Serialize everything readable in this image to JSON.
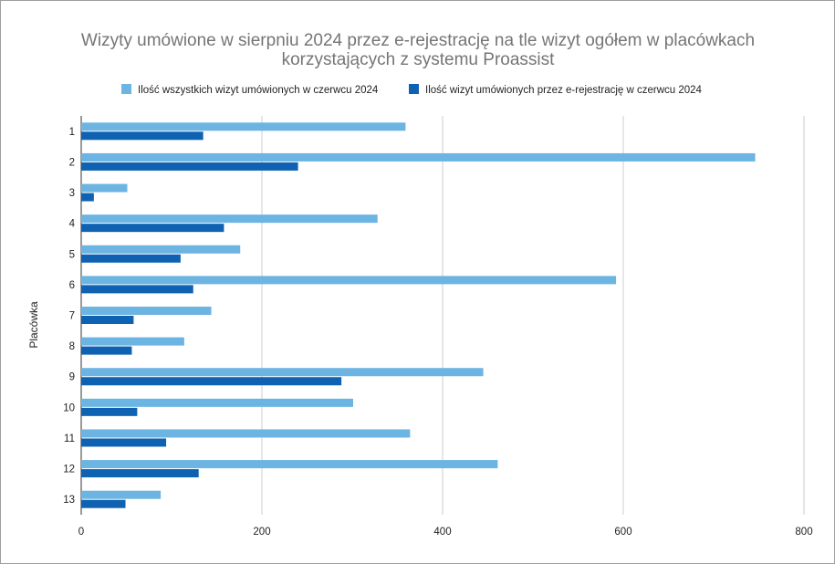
{
  "chart_data": {
    "type": "bar",
    "orientation": "horizontal",
    "title_lines": [
      "Wizyty umówione w sierpniu 2024  przez e-rejestrację na tle wizyt ogółem w placówkach",
      "korzystających z systemu Proassist"
    ],
    "ylabel": "Placówka",
    "xlabel": "",
    "categories": [
      "1",
      "2",
      "3",
      "4",
      "5",
      "6",
      "7",
      "8",
      "9",
      "10",
      "11",
      "12",
      "13"
    ],
    "xlim": [
      0,
      800
    ],
    "xticks": [
      "0",
      "200",
      "400",
      "600",
      "800"
    ],
    "grid": true,
    "legend_position": "top",
    "series": [
      {
        "name": "Ilość wszystkich wizyt umówionych w czerwcu 2024",
        "color": "#6cb4e1",
        "values": [
          359,
          746,
          51,
          328,
          176,
          592,
          144,
          114,
          445,
          301,
          364,
          461,
          88
        ]
      },
      {
        "name": "Ilość wizyt umówionych przez e-rejestrację w czerwcu 2024",
        "color": "#0f62b2",
        "values": [
          135,
          240,
          14,
          158,
          110,
          124,
          58,
          56,
          288,
          62,
          94,
          130,
          49
        ]
      }
    ]
  }
}
